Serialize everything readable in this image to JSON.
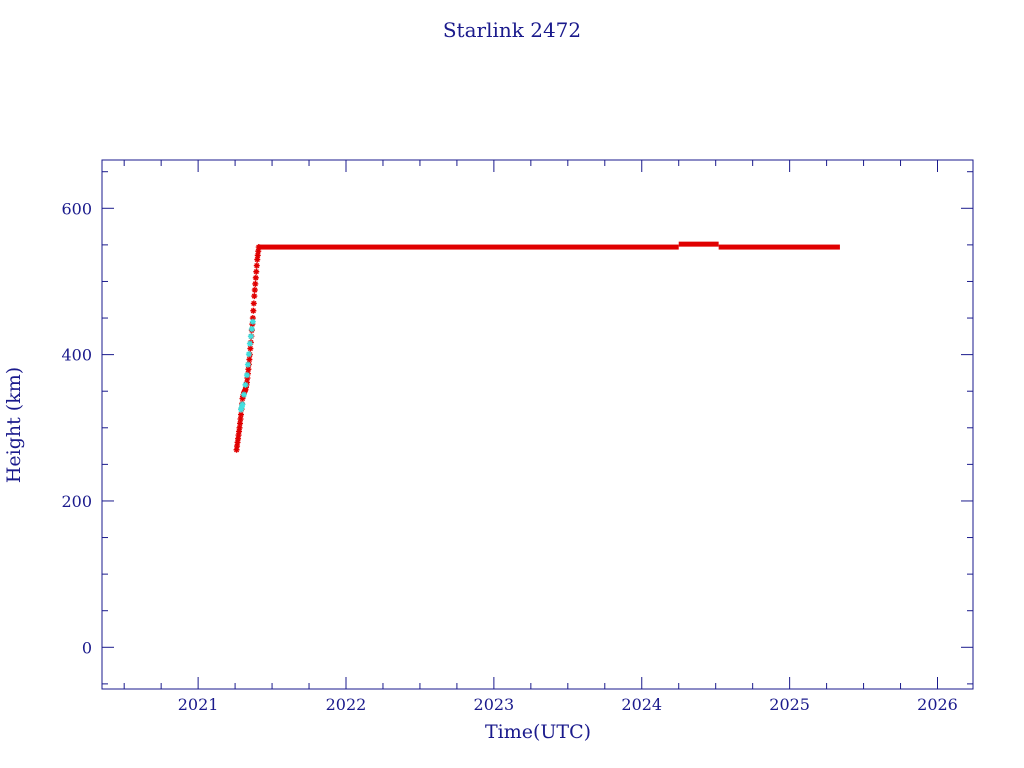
{
  "chart_data": {
    "type": "scatter",
    "title": "Starlink 2472",
    "xlabel": "Time(UTC)",
    "ylabel": "Height (km)",
    "xlim": [
      2020.35,
      2026.24
    ],
    "ylim": [
      -57,
      666
    ],
    "x_ticks": [
      2021,
      2022,
      2023,
      2024,
      2025,
      2026
    ],
    "y_ticks": [
      0,
      200,
      400,
      600
    ],
    "x_tick_labels": [
      "2021",
      "2022",
      "2023",
      "2024",
      "2025",
      "2026"
    ],
    "y_tick_labels": [
      "0",
      "200",
      "400",
      "600"
    ],
    "grid": false,
    "colors": {
      "axes": "#1a1a8c",
      "primary_points": "#e00000",
      "secondary_points": "#40e0e0"
    },
    "series": [
      {
        "color": "#e00000",
        "marker": "star",
        "points": [
          [
            2021.26,
            270
          ],
          [
            2021.27,
            285
          ],
          [
            2021.28,
            300
          ],
          [
            2021.29,
            318
          ],
          [
            2021.3,
            340
          ],
          [
            2021.31,
            348
          ],
          [
            2021.32,
            352
          ],
          [
            2021.33,
            362
          ],
          [
            2021.34,
            380
          ],
          [
            2021.35,
            400
          ],
          [
            2021.36,
            425
          ],
          [
            2021.37,
            450
          ],
          [
            2021.38,
            480
          ],
          [
            2021.39,
            505
          ],
          [
            2021.4,
            530
          ],
          [
            2021.41,
            547
          ]
        ],
        "segments": [
          {
            "x_start": 2021.41,
            "x_end": 2024.25,
            "y": 547
          },
          {
            "x_start": 2024.25,
            "x_end": 2024.52,
            "y": 551
          },
          {
            "x_start": 2024.52,
            "x_end": 2025.34,
            "y": 547
          }
        ]
      },
      {
        "color": "#40e0e0",
        "marker": "star",
        "points": [
          [
            2021.29,
            325
          ],
          [
            2021.3,
            332
          ],
          [
            2021.33,
            372
          ],
          [
            2021.35,
            415
          ],
          [
            2021.37,
            445
          ]
        ]
      }
    ]
  }
}
